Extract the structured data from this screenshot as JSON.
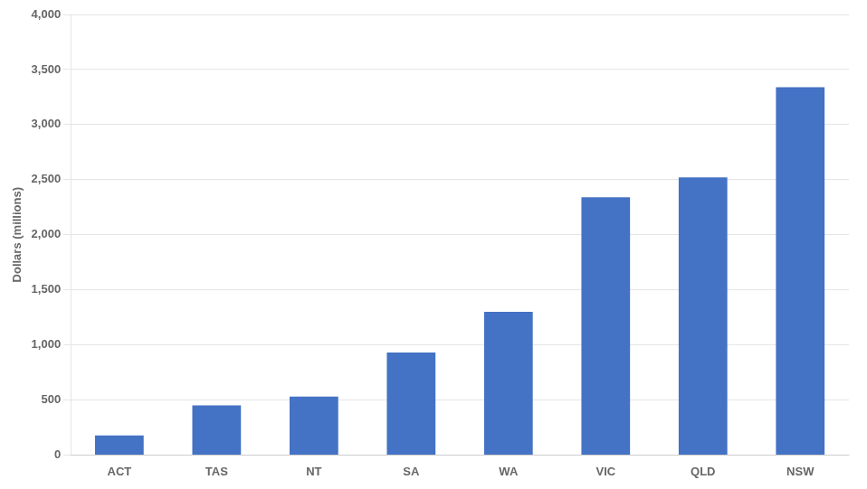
{
  "chart_data": {
    "type": "bar",
    "categories": [
      "ACT",
      "TAS",
      "NT",
      "SA",
      "WA",
      "VIC",
      "QLD",
      "NSW"
    ],
    "values": [
      178,
      450,
      530,
      930,
      1300,
      2340,
      2520,
      3340
    ],
    "color": "#4472C4",
    "ylabel": "Dollars (millions)",
    "ylim": [
      0,
      4000
    ],
    "yticks": [
      0,
      500,
      {
        "value": 1000,
        "label": "1,000"
      },
      {
        "value": 1500,
        "label": "1,500"
      },
      {
        "value": 2000,
        "label": "2,000"
      },
      {
        "value": 2500,
        "label": "2,500"
      },
      {
        "value": 3000,
        "label": "3,000"
      },
      {
        "value": 3500,
        "label": "3,500"
      },
      {
        "value": 4000,
        "label": "4,000"
      }
    ],
    "grid": true
  }
}
